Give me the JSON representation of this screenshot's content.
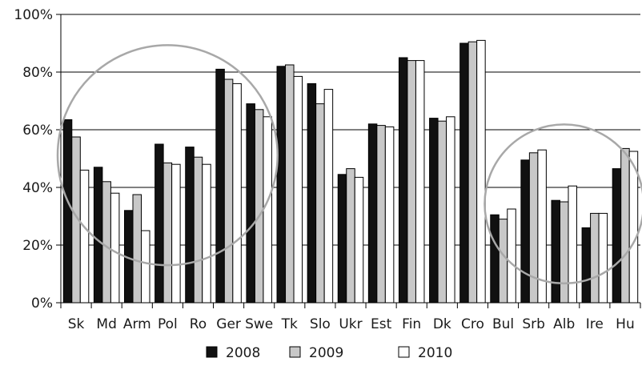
{
  "chart_data": {
    "type": "bar",
    "categories": [
      "Sk",
      "Md",
      "Arm",
      "Pol",
      "Ro",
      "Ger",
      "Swe",
      "Tk",
      "Slo",
      "Ukr",
      "Est",
      "Fin",
      "Dk",
      "Cro",
      "Bul",
      "Srb",
      "Alb",
      "Ire",
      "Hu"
    ],
    "series": [
      {
        "name": "2008",
        "color": "#111111",
        "values": [
          63.5,
          47,
          32,
          55,
          54,
          81,
          69,
          82,
          76,
          44.5,
          62,
          85,
          64,
          90,
          30.5,
          49.5,
          35.5,
          26,
          46.5
        ]
      },
      {
        "name": "2009",
        "color": "#c8c8c8",
        "values": [
          57.5,
          42,
          37.5,
          48.5,
          50.5,
          77.5,
          67,
          82.5,
          69,
          46.5,
          61.5,
          84,
          63,
          90.5,
          29,
          52,
          35,
          31,
          53.5
        ]
      },
      {
        "name": "2010",
        "color": "#ffffff",
        "values": [
          46,
          38,
          25,
          48,
          48,
          76,
          64.5,
          78.5,
          74,
          43.5,
          61,
          84,
          64.5,
          91,
          32.5,
          53,
          40.5,
          31,
          52.5
        ]
      }
    ],
    "yticks": [
      "0%",
      "20%",
      "40%",
      "60%",
      "80%",
      "100%"
    ],
    "ylim": [
      0,
      100
    ],
    "grid": "horizontal",
    "legend": "bottom",
    "annotations": [
      {
        "type": "ellipse",
        "around": [
          "Sk",
          "Md",
          "Arm",
          "Pol",
          "Ro",
          "Ger",
          "Swe"
        ],
        "color": "#a8a8a8"
      },
      {
        "type": "ellipse",
        "around": [
          "Bul",
          "Srb",
          "Alb",
          "Ire",
          "Hu"
        ],
        "color": "#a8a8a8"
      }
    ]
  }
}
